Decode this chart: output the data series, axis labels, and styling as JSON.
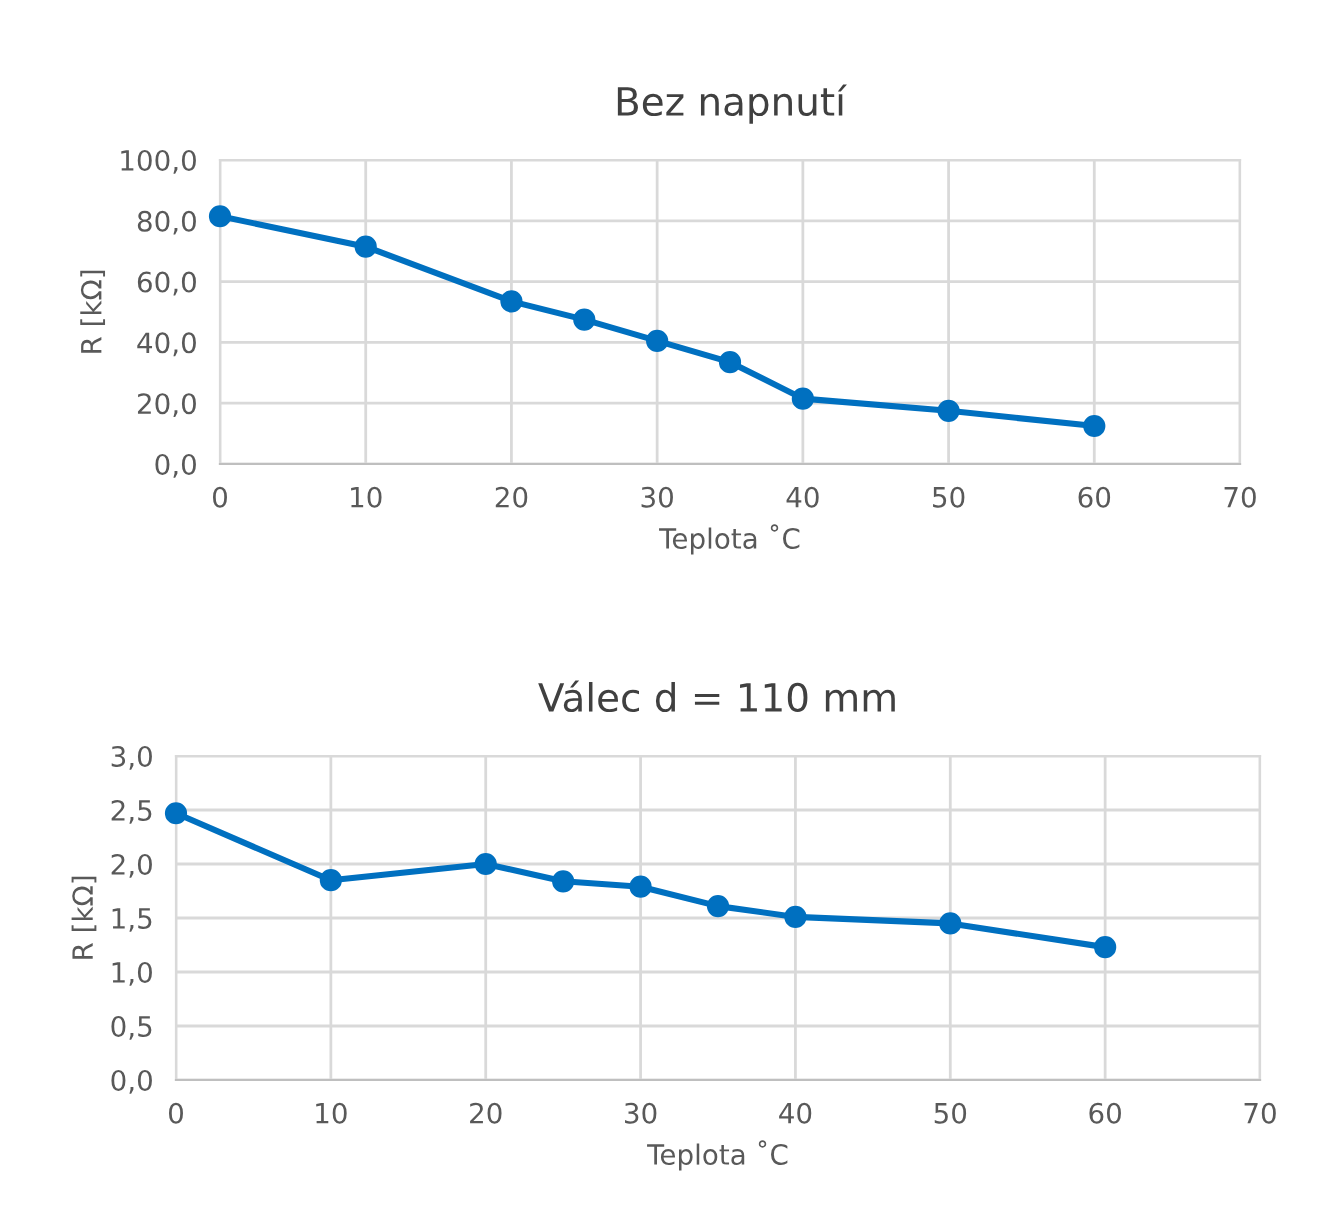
{
  "chart_data": [
    {
      "type": "line",
      "title": "Bez napnutí",
      "xlabel": "Teplota ˚C",
      "ylabel": "R [kΩ]",
      "x": [
        0,
        10,
        20,
        25,
        30,
        35,
        40,
        50,
        60
      ],
      "series": [
        {
          "color": "#0070c0",
          "values": [
            81.5,
            71.5,
            53.5,
            47.5,
            40.5,
            33.5,
            21.5,
            17.5,
            12.5
          ]
        }
      ],
      "xlim": [
        0,
        70
      ],
      "xticks": [
        0,
        10,
        20,
        30,
        40,
        50,
        60,
        70
      ],
      "ylim": [
        0,
        100
      ],
      "yticks": [
        {
          "value": 0,
          "label": "0,0"
        },
        {
          "value": 20,
          "label": "20,0"
        },
        {
          "value": 40,
          "label": "40,0"
        },
        {
          "value": 60,
          "label": "60,0"
        },
        {
          "value": 80,
          "label": "80,0"
        },
        {
          "value": 100,
          "label": "100,0"
        }
      ],
      "grid": true,
      "marker": "circle",
      "line_style": "solid"
    },
    {
      "type": "line",
      "title": "Válec d = 110 mm",
      "xlabel": "Teplota ˚C",
      "ylabel": "R [kΩ]",
      "x": [
        0,
        10,
        20,
        25,
        30,
        35,
        40,
        50,
        60
      ],
      "series": [
        {
          "color": "#0070c0",
          "values": [
            2.47,
            1.85,
            2.0,
            1.84,
            1.79,
            1.61,
            1.51,
            1.45,
            1.23
          ]
        }
      ],
      "xlim": [
        0,
        70
      ],
      "xticks": [
        0,
        10,
        20,
        30,
        40,
        50,
        60,
        70
      ],
      "ylim": [
        0,
        3
      ],
      "yticks": [
        {
          "value": 0,
          "label": "0,0"
        },
        {
          "value": 0.5,
          "label": "0,5"
        },
        {
          "value": 1,
          "label": "1,0"
        },
        {
          "value": 1.5,
          "label": "1,5"
        },
        {
          "value": 2,
          "label": "2,0"
        },
        {
          "value": 2.5,
          "label": "2,5"
        },
        {
          "value": 3,
          "label": "3,0"
        }
      ],
      "grid": true,
      "marker": "circle",
      "line_style": "solid"
    }
  ]
}
